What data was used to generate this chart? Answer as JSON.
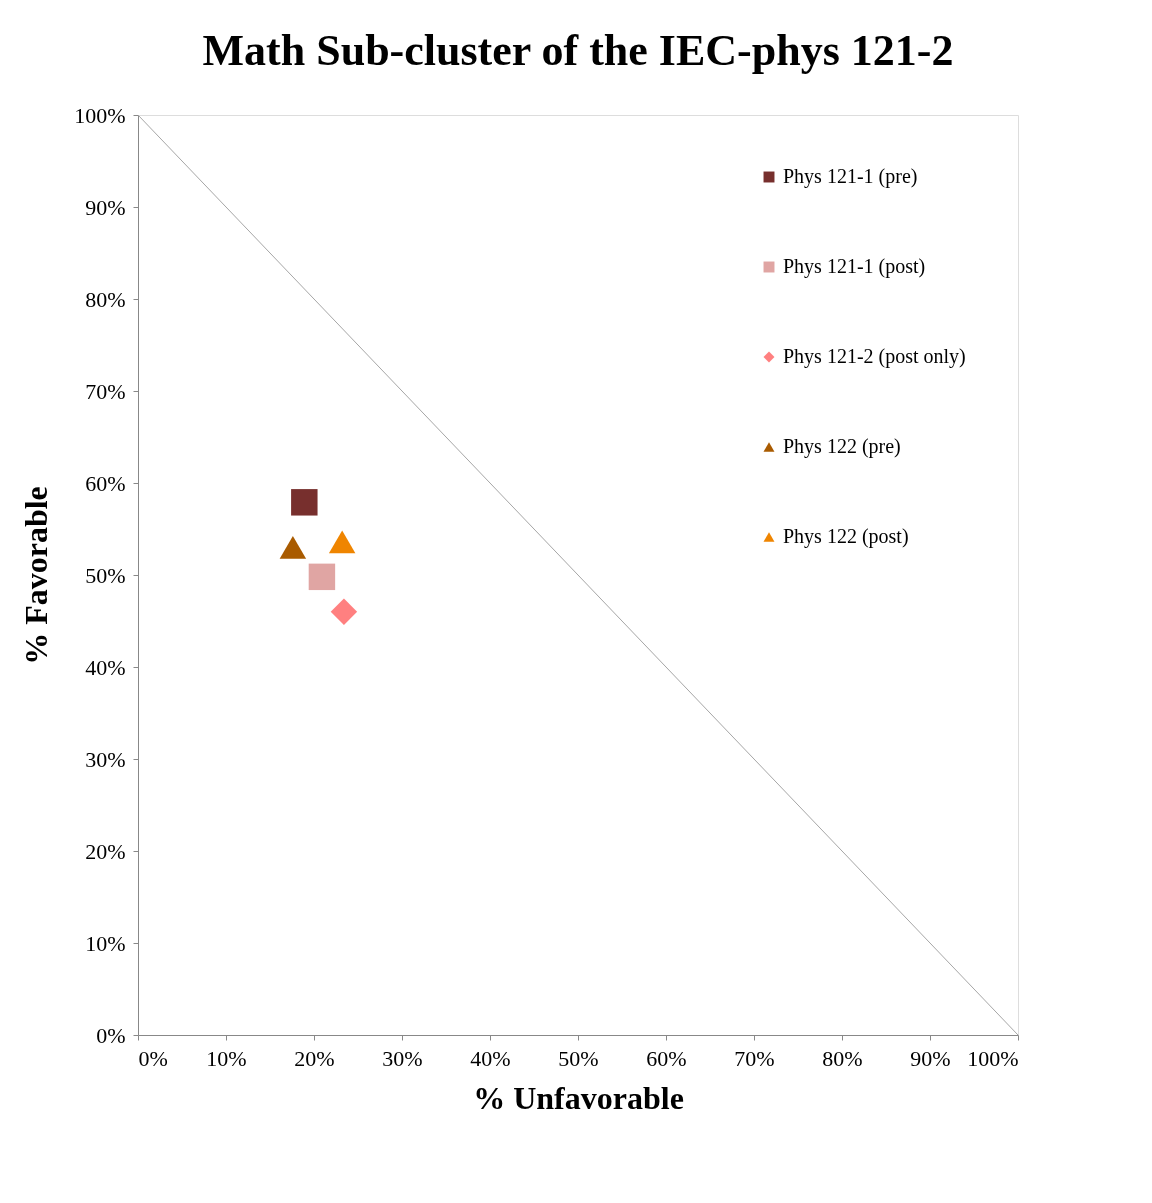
{
  "chart_data": {
    "type": "scatter",
    "title": "Math Sub-cluster of the IEC-phys 121-2",
    "xlabel": "% Unfavorable",
    "ylabel": "% Favorable",
    "xlim": [
      0,
      100
    ],
    "ylim": [
      0,
      100
    ],
    "xticks": [
      {
        "value": 0,
        "label": "0%"
      },
      {
        "value": 10,
        "label": "10%"
      },
      {
        "value": 20,
        "label": "20%"
      },
      {
        "value": 30,
        "label": "30%"
      },
      {
        "value": 40,
        "label": "40%"
      },
      {
        "value": 50,
        "label": "50%"
      },
      {
        "value": 60,
        "label": "60%"
      },
      {
        "value": 70,
        "label": "70%"
      },
      {
        "value": 80,
        "label": "80%"
      },
      {
        "value": 90,
        "label": "90%"
      },
      {
        "value": 100,
        "label": "100%"
      }
    ],
    "yticks": [
      {
        "value": 0,
        "label": "0%"
      },
      {
        "value": 10,
        "label": "10%"
      },
      {
        "value": 20,
        "label": "20%"
      },
      {
        "value": 30,
        "label": "30%"
      },
      {
        "value": 40,
        "label": "40%"
      },
      {
        "value": 50,
        "label": "50%"
      },
      {
        "value": 60,
        "label": "60%"
      },
      {
        "value": 70,
        "label": "70%"
      },
      {
        "value": 80,
        "label": "80%"
      },
      {
        "value": 90,
        "label": "90%"
      },
      {
        "value": 100,
        "label": "100%"
      }
    ],
    "grid": false,
    "legend": "top right",
    "series": [
      {
        "type": "line",
        "color": "#a6a6a6",
        "x": [
          0,
          100
        ],
        "values": [
          100,
          0
        ]
      },
      {
        "name": "Phys 121-1 (pre)",
        "color": "#772f2d",
        "marker": "square",
        "x": [
          18.9
        ],
        "values": [
          57.9
        ]
      },
      {
        "name": "Phys 121-1 (post)",
        "color": "#e0a5a3",
        "marker": "square",
        "x": [
          20.9
        ],
        "values": [
          49.8
        ]
      },
      {
        "name": "Phys 121-2 (post only)",
        "color": "#ff8080",
        "marker": "diamond",
        "x": [
          23.4
        ],
        "values": [
          46.0
        ]
      },
      {
        "name": "Phys 122 (pre)",
        "color": "#a95b00",
        "marker": "triangle",
        "x": [
          17.6
        ],
        "values": [
          53.0
        ]
      },
      {
        "name": "Phys 122 (post)",
        "color": "#ef8500",
        "marker": "triangle",
        "x": [
          23.2
        ],
        "values": [
          53.6
        ]
      }
    ]
  }
}
